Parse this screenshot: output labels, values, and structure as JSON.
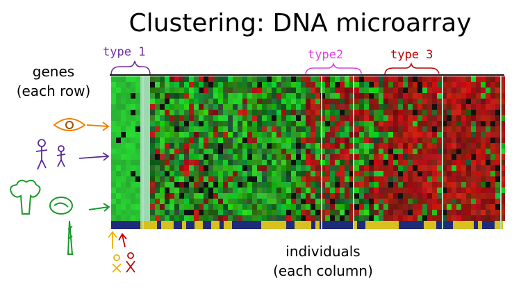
{
  "title": "Clustering: DNA microarray",
  "genes": {
    "label": "genes",
    "note": "(each row)"
  },
  "individuals": {
    "label": "individuals",
    "note": "(each column)"
  },
  "types": [
    "type 1",
    "type2",
    "type 3"
  ]
}
